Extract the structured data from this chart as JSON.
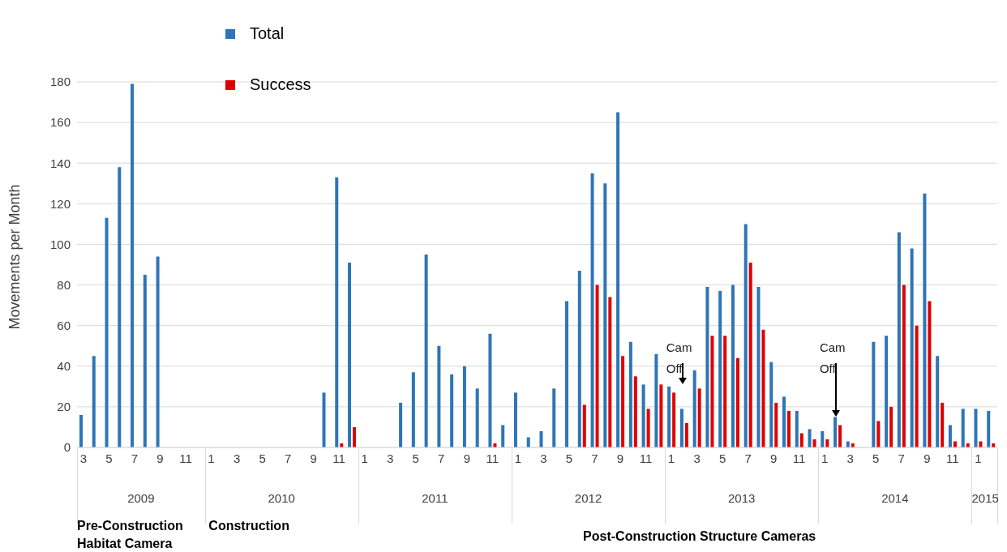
{
  "chart_data": {
    "type": "bar",
    "ylabel": "Movements per Month",
    "categories": [
      "3",
      null,
      "5",
      null,
      "7",
      null,
      "9",
      null,
      "11",
      null,
      "1",
      null,
      "3",
      null,
      "5",
      null,
      "7",
      null,
      "9",
      null,
      "11",
      null,
      "1",
      null,
      "3",
      null,
      "5",
      null,
      "7",
      null,
      "9",
      null,
      "11",
      null,
      "1",
      null,
      "3",
      null,
      "5",
      null,
      "7",
      null,
      "9",
      null,
      "11",
      null,
      "1",
      null,
      "3",
      null,
      "5",
      null,
      "7",
      null,
      "9",
      null,
      "11",
      null,
      "1",
      null,
      "3",
      null,
      "5",
      null,
      "7",
      null,
      "9",
      null,
      "11",
      null,
      "1",
      null
    ],
    "series": [
      {
        "name": "Total",
        "color": "#2e75b6",
        "values": [
          16,
          45,
          113,
          138,
          179,
          85,
          94,
          null,
          null,
          null,
          null,
          null,
          null,
          null,
          null,
          null,
          null,
          null,
          null,
          27,
          133,
          91,
          null,
          null,
          null,
          22,
          37,
          95,
          50,
          36,
          40,
          29,
          56,
          11,
          27,
          5,
          8,
          29,
          72,
          87,
          135,
          130,
          165,
          52,
          31,
          46,
          30,
          19,
          38,
          79,
          77,
          80,
          110,
          79,
          42,
          25,
          18,
          9,
          8,
          15,
          3,
          null,
          52,
          55,
          106,
          98,
          125,
          45,
          11,
          19,
          19,
          18
        ]
      },
      {
        "name": "Success",
        "color": "#e00000",
        "values": [
          null,
          null,
          null,
          null,
          null,
          null,
          null,
          null,
          null,
          null,
          null,
          null,
          null,
          null,
          null,
          null,
          null,
          null,
          null,
          null,
          2,
          10,
          null,
          null,
          null,
          null,
          null,
          null,
          null,
          null,
          null,
          null,
          2,
          null,
          null,
          null,
          null,
          null,
          null,
          21,
          80,
          74,
          45,
          35,
          19,
          31,
          27,
          12,
          29,
          55,
          55,
          44,
          91,
          58,
          22,
          18,
          7,
          4,
          4,
          11,
          2,
          null,
          13,
          20,
          80,
          60,
          72,
          22,
          3,
          2,
          3,
          2
        ]
      }
    ],
    "ylim": [
      0,
      180
    ],
    "yticks": [
      0,
      20,
      40,
      60,
      80,
      100,
      120,
      140,
      160,
      180
    ],
    "grid": "y",
    "legend": "top left",
    "annotations": [
      "Cam Off",
      "Cam Off",
      "2009",
      "2010",
      "2011",
      "2012",
      "2013",
      "2014",
      "2015",
      "Pre-Construction Habitat Camera",
      "Construction",
      "Post-Construction Structure Cameras"
    ]
  }
}
